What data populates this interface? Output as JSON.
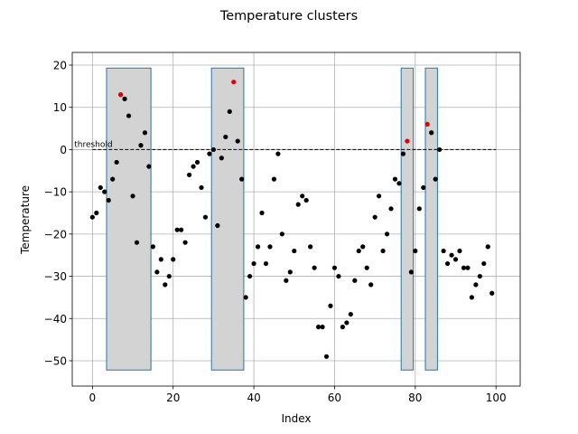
{
  "chart_data": {
    "type": "scatter",
    "title": "Temperature clusters",
    "xlabel": "Index",
    "ylabel": "Temperature",
    "xlim": [
      -5,
      106
    ],
    "ylim": [
      -56,
      23
    ],
    "xticks": [
      0,
      20,
      40,
      60,
      80,
      100
    ],
    "yticks": [
      -50,
      -40,
      -30,
      -20,
      -10,
      0,
      10,
      20
    ],
    "grid": true,
    "threshold": {
      "value": 0,
      "x_range": [
        0,
        100
      ],
      "label": "threshold",
      "style": "dashed"
    },
    "clusters": [
      {
        "x_range": [
          3.5,
          14.5
        ],
        "y_range": [
          -52.2,
          19.3
        ]
      },
      {
        "x_range": [
          29.5,
          37.5
        ],
        "y_range": [
          -52.2,
          19.3
        ]
      },
      {
        "x_range": [
          76.5,
          79.5
        ],
        "y_range": [
          -52.2,
          19.3
        ]
      },
      {
        "x_range": [
          82.5,
          85.5
        ],
        "y_range": [
          -52.2,
          19.3
        ]
      }
    ],
    "series": [
      {
        "color": "#000000",
        "x": [
          0,
          1,
          2,
          3,
          4,
          5,
          6,
          7,
          8,
          9,
          10,
          11,
          12,
          13,
          14,
          15,
          16,
          17,
          18,
          19,
          20,
          21,
          22,
          23,
          24,
          25,
          26,
          27,
          28,
          29,
          30,
          31,
          32,
          33,
          34,
          36,
          37,
          38,
          39,
          40,
          41,
          42,
          43,
          44,
          45,
          46,
          47,
          48,
          49,
          50,
          51,
          52,
          53,
          54,
          55,
          56,
          57,
          58,
          59,
          60,
          61,
          62,
          63,
          64,
          65,
          66,
          67,
          68,
          69,
          70,
          71,
          72,
          73,
          74,
          75,
          76,
          77,
          79,
          80,
          81,
          82,
          84,
          85,
          86,
          87,
          88,
          89,
          90,
          91,
          92,
          93,
          94,
          95,
          96,
          97,
          98,
          99
        ],
        "y": [
          -16,
          -15,
          -9,
          -10,
          -12,
          -7,
          -3,
          13,
          12,
          8,
          -11,
          -22,
          1,
          4,
          -4,
          -23,
          -29,
          -26,
          -32,
          -30,
          -26,
          -19,
          -19,
          -22,
          -6,
          -4,
          -3,
          -9,
          -16,
          -1,
          0,
          -18,
          -2,
          3,
          9,
          2,
          -7,
          -35,
          -30,
          -27,
          -23,
          -15,
          -27,
          -23,
          -7,
          -1,
          -20,
          -31,
          -29,
          -24,
          -13,
          -11,
          -12,
          -23,
          -28,
          -42,
          -42,
          -49,
          -37,
          -28,
          -30,
          -42,
          -41,
          -39,
          -31,
          -24,
          -23,
          -28,
          -32,
          -16,
          -11,
          -24,
          -20,
          -14,
          -7,
          -8,
          -1,
          -29,
          -24,
          -14,
          -9,
          4,
          -7,
          0,
          -24,
          -27,
          -25,
          -26,
          -24,
          -28,
          -28,
          -35,
          -32,
          -30,
          -27,
          -23,
          -34
        ]
      },
      {
        "color": "#e00000",
        "x": [
          7,
          35,
          78,
          83
        ],
        "y": [
          13,
          16,
          2,
          6
        ]
      }
    ]
  }
}
